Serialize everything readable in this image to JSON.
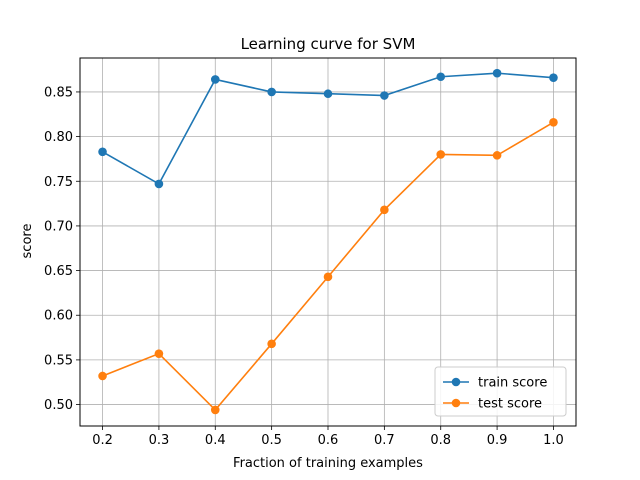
{
  "chart_data": {
    "type": "line",
    "title": "Learning curve for SVM",
    "xlabel": "Fraction of training examples",
    "ylabel": "score",
    "x": [
      0.2,
      0.3,
      0.4,
      0.5,
      0.6,
      0.7,
      0.8,
      0.9,
      1.0
    ],
    "xticks": [
      "0.2",
      "0.3",
      "0.4",
      "0.5",
      "0.6",
      "0.7",
      "0.8",
      "0.9",
      "1.0"
    ],
    "yticks": [
      "0.50",
      "0.55",
      "0.60",
      "0.65",
      "0.70",
      "0.75",
      "0.80",
      "0.85"
    ],
    "xlim": [
      0.16,
      1.04
    ],
    "ylim": [
      0.476,
      0.888
    ],
    "grid": true,
    "legend_position": "bottom-right",
    "series": [
      {
        "name": "train score",
        "color": "#1f77b4",
        "marker": "circle",
        "values": [
          0.783,
          0.747,
          0.864,
          0.85,
          0.848,
          0.846,
          0.867,
          0.871,
          0.866
        ]
      },
      {
        "name": "test score",
        "color": "#ff7f0e",
        "marker": "circle",
        "values": [
          0.532,
          0.557,
          0.494,
          0.568,
          0.643,
          0.718,
          0.78,
          0.779,
          0.816
        ]
      }
    ]
  }
}
